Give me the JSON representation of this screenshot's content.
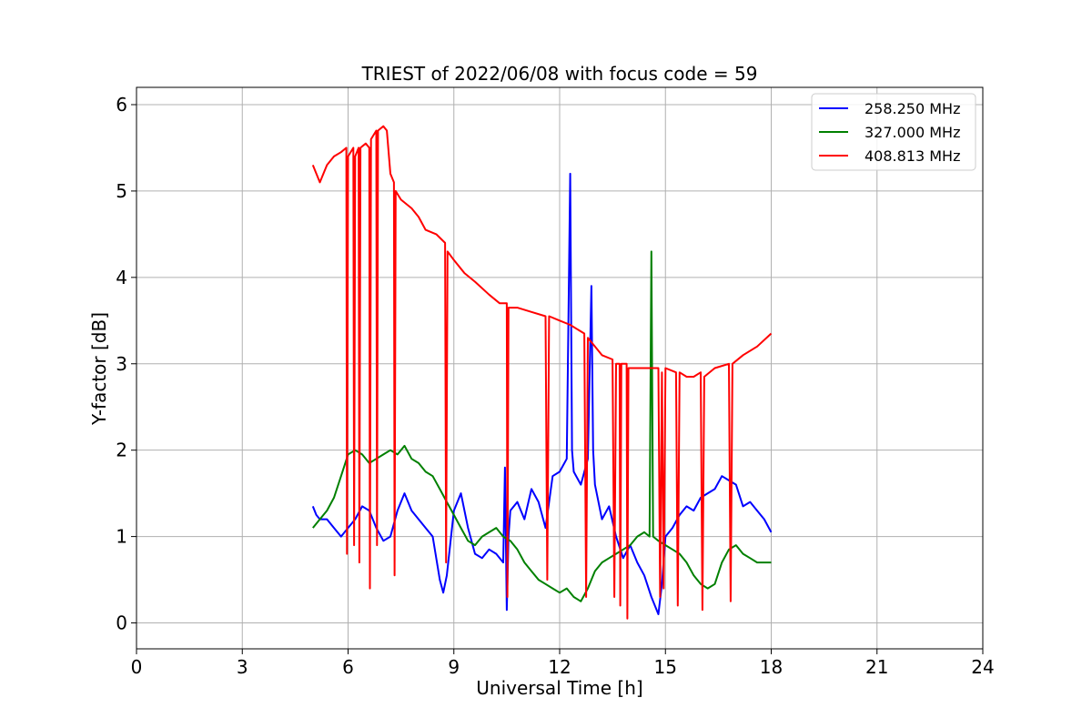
{
  "chart_data": {
    "type": "line",
    "title": "TRIEST of 2022/06/08 with focus code = 59",
    "xlabel": "Universal Time [h]",
    "ylabel": "Y-factor [dB]",
    "xlim": [
      0,
      24
    ],
    "ylim": [
      -0.3,
      6.2
    ],
    "xticks": [
      0,
      3,
      6,
      9,
      12,
      15,
      18,
      21,
      24
    ],
    "yticks": [
      0,
      1,
      2,
      3,
      4,
      5,
      6
    ],
    "grid": true,
    "legend_position": "top-right",
    "series": [
      {
        "name": "258.250 MHz",
        "color": "#0000ff",
        "x": [
          5.0,
          5.1,
          5.2,
          5.4,
          5.6,
          5.8,
          6.0,
          6.2,
          6.4,
          6.6,
          6.8,
          7.0,
          7.2,
          7.4,
          7.6,
          7.8,
          8.0,
          8.2,
          8.4,
          8.6,
          8.7,
          8.8,
          9.0,
          9.2,
          9.4,
          9.6,
          9.8,
          10.0,
          10.2,
          10.4,
          10.45,
          10.5,
          10.55,
          10.6,
          10.8,
          11.0,
          11.2,
          11.4,
          11.6,
          11.8,
          12.0,
          12.2,
          12.3,
          12.35,
          12.4,
          12.6,
          12.8,
          12.9,
          12.95,
          13.0,
          13.2,
          13.4,
          13.6,
          13.8,
          14.0,
          14.2,
          14.4,
          14.6,
          14.8,
          14.9,
          15.0,
          15.2,
          15.4,
          15.6,
          15.8,
          16.0,
          16.2,
          16.4,
          16.6,
          16.8,
          17.0,
          17.2,
          17.4,
          17.6,
          17.8,
          18.0
        ],
        "y": [
          1.35,
          1.25,
          1.2,
          1.2,
          1.1,
          1.0,
          1.1,
          1.2,
          1.35,
          1.3,
          1.1,
          0.95,
          1.0,
          1.3,
          1.5,
          1.3,
          1.2,
          1.1,
          1.0,
          0.5,
          0.35,
          0.55,
          1.3,
          1.5,
          1.1,
          0.8,
          0.75,
          0.85,
          0.8,
          0.7,
          1.8,
          0.15,
          1.0,
          1.3,
          1.4,
          1.2,
          1.55,
          1.4,
          1.1,
          1.7,
          1.75,
          1.9,
          5.2,
          2.0,
          1.75,
          1.6,
          1.9,
          3.9,
          2.0,
          1.6,
          1.2,
          1.35,
          1.0,
          0.75,
          0.9,
          0.7,
          0.55,
          0.3,
          0.1,
          0.45,
          1.0,
          1.1,
          1.25,
          1.35,
          1.3,
          1.45,
          1.5,
          1.55,
          1.7,
          1.65,
          1.6,
          1.35,
          1.4,
          1.3,
          1.2,
          1.05
        ]
      },
      {
        "name": "327.000 MHz",
        "color": "#008000",
        "x": [
          5.0,
          5.2,
          5.4,
          5.6,
          5.8,
          6.0,
          6.2,
          6.4,
          6.6,
          6.8,
          7.0,
          7.2,
          7.4,
          7.6,
          7.8,
          8.0,
          8.2,
          8.4,
          8.6,
          8.8,
          9.0,
          9.2,
          9.4,
          9.6,
          9.8,
          10.0,
          10.2,
          10.4,
          10.6,
          10.8,
          11.0,
          11.2,
          11.4,
          11.6,
          11.8,
          12.0,
          12.2,
          12.4,
          12.6,
          12.8,
          13.0,
          13.2,
          13.4,
          13.6,
          13.8,
          14.0,
          14.2,
          14.4,
          14.55,
          14.6,
          14.65,
          14.8,
          15.0,
          15.2,
          15.4,
          15.6,
          15.8,
          16.0,
          16.2,
          16.4,
          16.6,
          16.8,
          17.0,
          17.2,
          17.4,
          17.6,
          17.8,
          18.0
        ],
        "y": [
          1.1,
          1.2,
          1.3,
          1.45,
          1.7,
          1.95,
          2.0,
          1.95,
          1.85,
          1.9,
          1.95,
          2.0,
          1.95,
          2.05,
          1.9,
          1.85,
          1.75,
          1.7,
          1.55,
          1.4,
          1.25,
          1.1,
          0.95,
          0.9,
          1.0,
          1.05,
          1.1,
          1.0,
          0.95,
          0.85,
          0.7,
          0.6,
          0.5,
          0.45,
          0.4,
          0.35,
          0.4,
          0.3,
          0.25,
          0.4,
          0.6,
          0.7,
          0.75,
          0.8,
          0.85,
          0.9,
          1.0,
          1.05,
          1.0,
          4.3,
          1.0,
          0.95,
          0.9,
          0.85,
          0.8,
          0.7,
          0.55,
          0.45,
          0.4,
          0.45,
          0.7,
          0.85,
          0.9,
          0.8,
          0.75,
          0.7,
          0.7,
          0.7
        ]
      },
      {
        "name": "408.813 MHz",
        "color": "#ff0000",
        "x": [
          5.0,
          5.2,
          5.4,
          5.6,
          5.8,
          5.95,
          5.97,
          6.0,
          6.15,
          6.17,
          6.2,
          6.3,
          6.32,
          6.35,
          6.5,
          6.6,
          6.62,
          6.65,
          6.8,
          6.82,
          6.85,
          7.0,
          7.1,
          7.2,
          7.3,
          7.32,
          7.35,
          7.5,
          7.8,
          8.0,
          8.2,
          8.5,
          8.75,
          8.78,
          8.82,
          9.0,
          9.3,
          9.6,
          10.0,
          10.3,
          10.5,
          10.52,
          10.55,
          10.8,
          11.2,
          11.6,
          11.65,
          11.7,
          12.0,
          12.3,
          12.5,
          12.7,
          12.75,
          12.8,
          13.0,
          13.2,
          13.5,
          13.55,
          13.6,
          13.7,
          13.72,
          13.75,
          13.9,
          13.92,
          13.95,
          14.2,
          14.5,
          14.8,
          14.85,
          14.9,
          14.95,
          15.0,
          15.3,
          15.35,
          15.4,
          15.6,
          15.8,
          16.0,
          16.05,
          16.1,
          16.4,
          16.8,
          16.85,
          16.9,
          17.2,
          17.6,
          18.0
        ],
        "y": [
          5.3,
          5.1,
          5.3,
          5.4,
          5.45,
          5.5,
          0.8,
          5.4,
          5.5,
          0.9,
          5.4,
          5.5,
          0.7,
          5.5,
          5.55,
          5.5,
          0.4,
          5.6,
          5.7,
          0.9,
          5.7,
          5.75,
          5.7,
          5.2,
          5.1,
          0.55,
          5.0,
          4.9,
          4.8,
          4.7,
          4.55,
          4.5,
          4.4,
          0.7,
          4.3,
          4.2,
          4.05,
          3.95,
          3.8,
          3.7,
          3.7,
          0.3,
          3.65,
          3.65,
          3.6,
          3.55,
          0.5,
          3.55,
          3.5,
          3.45,
          3.4,
          3.35,
          0.3,
          3.3,
          3.2,
          3.1,
          3.05,
          0.3,
          3.0,
          3.0,
          0.2,
          3.0,
          3.0,
          0.05,
          2.95,
          2.95,
          2.95,
          2.95,
          0.3,
          2.9,
          0.4,
          2.95,
          2.9,
          0.2,
          2.9,
          2.85,
          2.85,
          2.9,
          0.15,
          2.85,
          2.95,
          3.0,
          0.25,
          3.0,
          3.1,
          3.2,
          3.35
        ]
      }
    ]
  }
}
